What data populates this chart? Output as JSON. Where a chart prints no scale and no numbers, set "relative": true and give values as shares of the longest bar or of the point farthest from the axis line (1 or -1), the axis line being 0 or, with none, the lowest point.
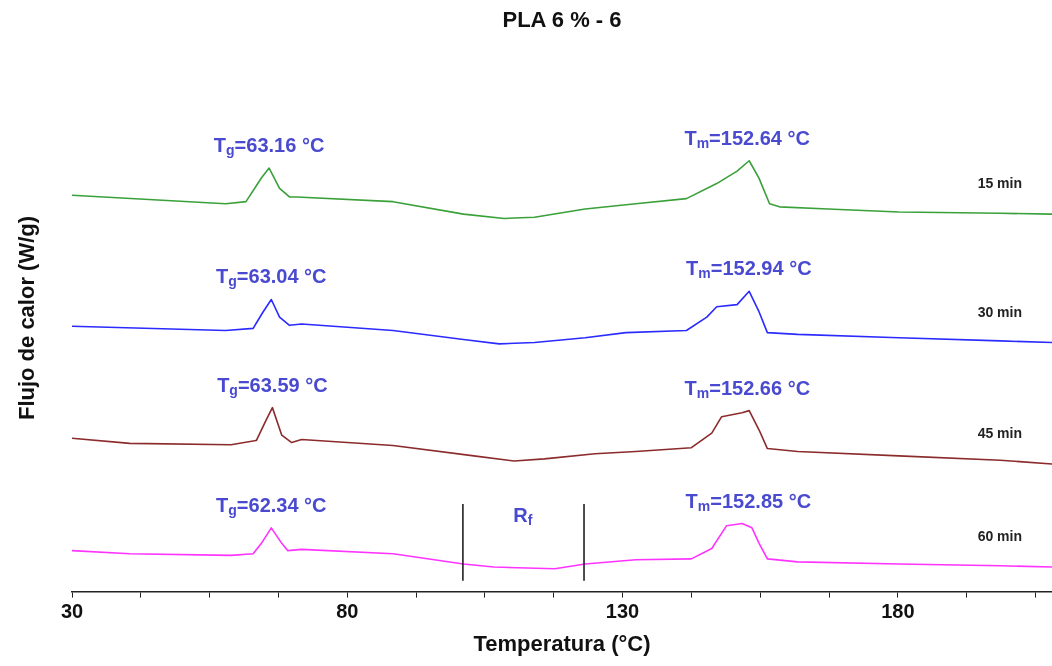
{
  "chart_data": {
    "type": "line",
    "title": "PLA 6 % - 6",
    "xlabel": "Temperatura (°C)",
    "ylabel": "Flujo de calor (W/g)",
    "relative": true,
    "legend": false,
    "grid": false,
    "marker": "none",
    "line_style": "solid",
    "xlim": [
      30,
      208
    ],
    "xticks": [
      30,
      {
        "value": 42.5,
        "label": null
      },
      {
        "value": 55,
        "label": null
      },
      {
        "value": 67.5,
        "label": null
      },
      80,
      {
        "value": 92.5,
        "label": null
      },
      {
        "value": 105,
        "label": null
      },
      {
        "value": 117.5,
        "label": null
      },
      130,
      {
        "value": 142.5,
        "label": null
      },
      {
        "value": 155,
        "label": null
      },
      {
        "value": 167.5,
        "label": null
      },
      180,
      {
        "value": 192.5,
        "label": null
      },
      {
        "value": 205,
        "label": null
      }
    ],
    "series": [
      {
        "name": "15 min",
        "color": "#3aa03a",
        "x": [
          30,
          57.9,
          61.6,
          64.4,
          65.8,
          67.7,
          69.5,
          70.8,
          88.3,
          101.1,
          108.5,
          114.0,
          123.2,
          132.4,
          141.6,
          147.1,
          150.8,
          153.0,
          154.8,
          156.7,
          158.5,
          167.3,
          180.2,
          198.6,
          208
        ],
        "values": [
          0.92,
          0.9,
          0.905,
          0.96,
          0.983,
          0.936,
          0.916,
          0.916,
          0.905,
          0.876,
          0.866,
          0.869,
          0.888,
          0.9,
          0.912,
          0.947,
          0.976,
          1.0,
          0.959,
          0.9,
          0.893,
          0.888,
          0.881,
          0.878,
          0.876
        ]
      },
      {
        "name": "30 min",
        "color": "#2b2bff",
        "x": [
          30,
          57.9,
          62.9,
          64.7,
          66.2,
          67.7,
          69.5,
          71.7,
          88.3,
          101.1,
          107.6,
          114.0,
          123.2,
          130.6,
          141.6,
          145.3,
          147.1,
          150.8,
          153.0,
          154.8,
          156.3,
          161.8,
          180.2,
          198.6,
          208
        ],
        "values": [
          0.616,
          0.606,
          0.611,
          0.649,
          0.678,
          0.637,
          0.618,
          0.621,
          0.606,
          0.585,
          0.575,
          0.578,
          0.589,
          0.601,
          0.606,
          0.637,
          0.661,
          0.666,
          0.697,
          0.649,
          0.601,
          0.597,
          0.589,
          0.582,
          0.578
        ]
      },
      {
        "name": "45 min",
        "color": "#8b2b2b",
        "x": [
          30,
          40.5,
          58.9,
          63.5,
          65.3,
          66.4,
          68.1,
          69.9,
          71.7,
          88.3,
          103.0,
          110.3,
          115.8,
          125.0,
          132.4,
          142.5,
          146.2,
          148.0,
          151.7,
          153.0,
          154.8,
          156.3,
          161.8,
          180.2,
          198.6,
          208
        ],
        "values": [
          0.356,
          0.344,
          0.341,
          0.351,
          0.399,
          0.427,
          0.363,
          0.346,
          0.353,
          0.339,
          0.315,
          0.303,
          0.308,
          0.32,
          0.325,
          0.334,
          0.368,
          0.406,
          0.415,
          0.42,
          0.375,
          0.332,
          0.325,
          0.315,
          0.305,
          0.296
        ]
      },
      {
        "name": "60 min",
        "color": "#ff33ff",
        "x": [
          30,
          40.5,
          58.9,
          62.9,
          64.4,
          66.2,
          68.1,
          69.2,
          71.7,
          88.3,
          101.1,
          106.6,
          117.7,
          123.2,
          132.4,
          142.5,
          146.2,
          148.9,
          151.7,
          153.5,
          154.8,
          156.3,
          161.8,
          180.2,
          198.6,
          208
        ],
        "values": [
          0.095,
          0.088,
          0.084,
          0.088,
          0.112,
          0.148,
          0.112,
          0.095,
          0.098,
          0.088,
          0.064,
          0.057,
          0.053,
          0.064,
          0.074,
          0.076,
          0.1,
          0.153,
          0.158,
          0.148,
          0.112,
          0.076,
          0.069,
          0.064,
          0.06,
          0.057
        ]
      }
    ],
    "annotations": [
      {
        "text": "T$_{g}$=63.16 °C",
        "x": 65.8,
        "y": 0.983
      },
      {
        "text": "T$_{m}$=152.64 °C",
        "x": 152.64,
        "y": 1.0
      },
      {
        "text": "T$_{g}$=63.04 °C",
        "x": 66.2,
        "y": 0.678
      },
      {
        "text": "T$_{m}$=152.94 °C",
        "x": 152.94,
        "y": 0.697
      },
      {
        "text": "T$_{g}$=63.59 °C",
        "x": 66.4,
        "y": 0.427
      },
      {
        "text": "T$_{m}$=152.66 °C",
        "x": 152.66,
        "y": 0.42
      },
      {
        "text": "T$_{g}$=62.34 °C",
        "x": 66.2,
        "y": 0.148
      },
      {
        "text": "T$_{m}$=152.85 °C",
        "x": 152.85,
        "y": 0.158
      }
    ],
    "ref_lines": [
      {
        "axis": "x",
        "value": 101,
        "label": "R$_{f}$"
      },
      {
        "axis": "x",
        "value": 123
      }
    ]
  }
}
